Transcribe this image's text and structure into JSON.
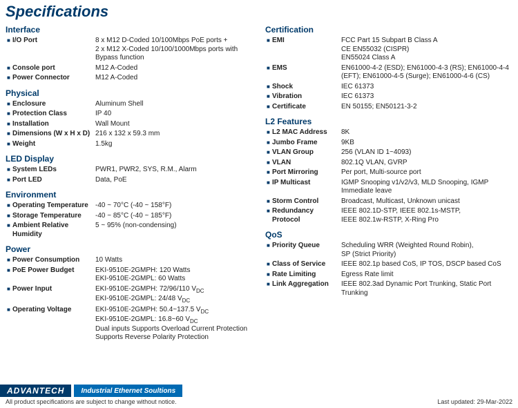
{
  "title": "Specifications",
  "columns": [
    {
      "sections": [
        {
          "heading": "Interface",
          "rows": [
            {
              "label": "I/O Port",
              "value": "8 x M12 D-Coded 10/100Mbps PoE ports +\n2 x M12 X-Coded 10/100/1000Mbps ports with Bypass function"
            },
            {
              "label": "Console port",
              "value": "M12 A-Coded"
            },
            {
              "label": "Power Connector",
              "value": "M12 A-Coded"
            }
          ]
        },
        {
          "heading": "Physical",
          "rows": [
            {
              "label": "Enclosure",
              "value": "Aluminum Shell"
            },
            {
              "label": "Protection Class",
              "value": "IP 40"
            },
            {
              "label": "Installation",
              "value": "Wall Mount"
            },
            {
              "label": "Dimensions (W x H x D)",
              "value": "216 x 132 x 59.3 mm"
            },
            {
              "label": "Weight",
              "value": "1.5kg"
            }
          ]
        },
        {
          "heading": "LED Display",
          "rows": [
            {
              "label": "System LEDs",
              "value": "PWR1, PWR2, SYS, R.M., Alarm"
            },
            {
              "label": "Port LED",
              "value": "Data, PoE"
            }
          ]
        },
        {
          "heading": "Environment",
          "rows": [
            {
              "label": "Operating Temperature",
              "value": "-40 ~ 70°C (-40 ~ 158°F)"
            },
            {
              "label": "Storage Temperature",
              "value": "-40 ~ 85°C (-40 ~ 185°F)"
            },
            {
              "label": "Ambient Relative Humidity",
              "value": "5 ~ 95% (non-condensing)"
            }
          ]
        },
        {
          "heading": "Power",
          "rows": [
            {
              "label": "Power Consumption",
              "value": "10 Watts"
            },
            {
              "label": "PoE Power Budget",
              "value": "EKI-9510E-2GMPH: 120 Watts\nEKI-9510E-2GMPL: 60 Watts"
            },
            {
              "label": "Power Input",
              "subdc": true,
              "value": "EKI-9510E-2GMPH: 72/96/110 V|DC|\nEKI-9510E-2GMPL: 24/48 V|DC|"
            },
            {
              "label": "Operating Voltage",
              "subdc": true,
              "value": "EKI-9510E-2GMPH: 50.4~137.5 V|DC|\nEKI-9510E-2GMPL: 16.8~60 V|DC|\nDual inputs Supports Overload Current Protection\nSupports Reverse Polarity Protection"
            }
          ]
        }
      ]
    },
    {
      "sections": [
        {
          "heading": "Certification",
          "rows": [
            {
              "label": "EMI",
              "value": "FCC Part 15 Subpart B Class A\nCE EN55032 (CISPR)\nEN55024 Class A"
            },
            {
              "label": "EMS",
              "value": "EN61000-4-2 (ESD); EN61000-4-3 (RS); EN61000-4-4 (EFT); EN61000-4-5 (Surge); EN61000-4-6 (CS)"
            },
            {
              "label": "Shock",
              "value": "IEC 61373"
            },
            {
              "label": "Vibration",
              "value": "IEC 61373"
            },
            {
              "label": "Certificate",
              "value": "EN 50155; EN50121-3-2"
            }
          ]
        },
        {
          "heading": "L2 Features",
          "rows": [
            {
              "label": "L2 MAC Address",
              "value": "8K"
            },
            {
              "label": "Jumbo Frame",
              "value": "9KB"
            },
            {
              "label": "VLAN Group",
              "value": "256 (VLAN ID 1~4093)"
            },
            {
              "label": "VLAN",
              "value": "802.1Q VLAN, GVRP"
            },
            {
              "label": "Port Mirroring",
              "value": "Per port, Multi-source port"
            },
            {
              "label": "IP Multicast",
              "value": "IGMP Snooping v1/v2/v3, MLD Snooping, IGMP Immediate leave"
            },
            {
              "label": "Storm Control",
              "value": "Broadcast, Multicast, Unknown unicast"
            },
            {
              "label": "Redundancy Protocol",
              "value": "IEEE 802.1D-STP, IEEE 802.1s-MSTP,\nIEEE 802.1w-RSTP, X-Ring Pro"
            }
          ]
        },
        {
          "heading": "QoS",
          "rows": [
            {
              "label": "Priority Queue",
              "value": "Scheduling WRR (Weighted Round Robin),\nSP (Strict Priority)"
            },
            {
              "label": "Class of Service",
              "value": "IEEE 802.1p based CoS, IP TOS, DSCP based CoS"
            },
            {
              "label": "Rate Limiting",
              "value": "Egress Rate limit"
            },
            {
              "label": "Link Aggregation",
              "value": "IEEE 802.3ad Dynamic Port Trunking, Static Port Trunking"
            }
          ]
        }
      ]
    }
  ],
  "footer": {
    "logo": "ADVANTECH",
    "tagline": "Industrial Ethernet Soultions",
    "note": "All product specifications are subject to change without notice.",
    "updated": "Last updated: 29-Mar-2022"
  }
}
